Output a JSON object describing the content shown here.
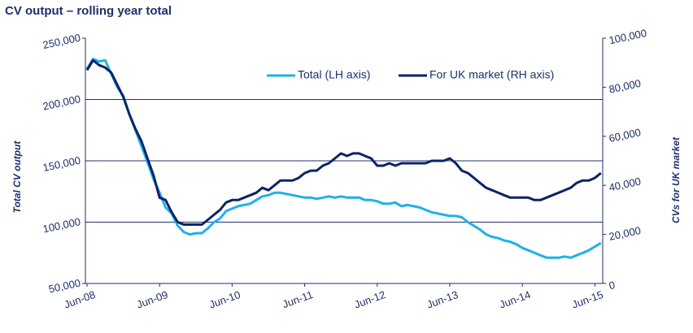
{
  "chart_data": {
    "type": "line",
    "title": "CV output – rolling year total",
    "ylabel": "Total CV output",
    "y2label": "CVs for UK market",
    "categories": [
      "Jun-08",
      null,
      null,
      null,
      null,
      null,
      null,
      null,
      null,
      null,
      null,
      null,
      "Jun-09",
      null,
      null,
      null,
      null,
      null,
      null,
      null,
      null,
      null,
      null,
      null,
      "Jun-10",
      null,
      null,
      null,
      null,
      null,
      null,
      null,
      null,
      null,
      null,
      null,
      "Jun-11",
      null,
      null,
      null,
      null,
      null,
      null,
      null,
      null,
      null,
      null,
      null,
      "Jun-12",
      null,
      null,
      null,
      null,
      null,
      null,
      null,
      null,
      null,
      null,
      null,
      "Jun-13",
      null,
      null,
      null,
      null,
      null,
      null,
      null,
      null,
      null,
      null,
      null,
      "Jun-14",
      null,
      null,
      null,
      null,
      null,
      null,
      null,
      null,
      null,
      null,
      null,
      "Jun-15",
      null
    ],
    "series": [
      {
        "name": "Total (LH axis)",
        "color": "#1fb1e6",
        "values": [
          225000,
          233000,
          231000,
          232000,
          221000,
          210000,
          203000,
          188000,
          175000,
          162000,
          149000,
          135000,
          124000,
          112000,
          107000,
          97000,
          92000,
          90000,
          91000,
          91000,
          95000,
          100000,
          103000,
          109000,
          111000,
          113000,
          114000,
          115000,
          118000,
          121000,
          122000,
          124000,
          124000,
          123000,
          122000,
          121000,
          120000,
          120000,
          119000,
          120000,
          121000,
          120000,
          121000,
          120000,
          120000,
          120000,
          118000,
          118000,
          117000,
          115000,
          115000,
          116000,
          113000,
          114000,
          113000,
          112000,
          110000,
          108000,
          107000,
          106000,
          105000,
          105000,
          104000,
          100000,
          97000,
          94000,
          90000,
          88000,
          87000,
          85000,
          84000,
          82000,
          79000,
          77000,
          75000,
          73000,
          71000,
          71000,
          71000,
          72000,
          71000,
          73000,
          75000,
          77000,
          80000,
          83000
        ]
      },
      {
        "name": "For UK market (RH axis)",
        "color": "#0b2466",
        "axis": "y2",
        "values": [
          87000,
          91000,
          89000,
          88000,
          86000,
          81000,
          76000,
          69000,
          63000,
          58000,
          51000,
          44000,
          35000,
          34000,
          29000,
          25000,
          24000,
          24000,
          24000,
          24000,
          26000,
          28000,
          30000,
          33000,
          34000,
          34000,
          35000,
          36000,
          37000,
          39000,
          38000,
          40000,
          42000,
          42000,
          42000,
          43000,
          45000,
          46000,
          46000,
          48000,
          49000,
          51000,
          53000,
          52000,
          53000,
          53000,
          52000,
          51000,
          48000,
          48000,
          49000,
          48000,
          49000,
          49000,
          49000,
          49000,
          49000,
          50000,
          50000,
          50000,
          51000,
          49000,
          46000,
          45000,
          43000,
          41000,
          39000,
          38000,
          37000,
          36000,
          35000,
          35000,
          35000,
          35000,
          34000,
          34000,
          35000,
          36000,
          37000,
          38000,
          39000,
          41000,
          42000,
          42000,
          43000,
          45000
        ]
      }
    ],
    "ylim": [
      50000,
      250000
    ],
    "yticks": [
      {
        "value": 50000,
        "label": "50,000"
      },
      {
        "value": 100000,
        "label": "100,000"
      },
      {
        "value": 150000,
        "label": "150,000"
      },
      {
        "value": 200000,
        "label": "200,000"
      },
      {
        "value": 250000,
        "label": "250,000"
      }
    ],
    "y2lim": [
      0,
      100000
    ],
    "y2ticks": [
      0,
      {
        "value": 20000,
        "label": "20,000"
      },
      {
        "value": 40000,
        "label": "40,000"
      },
      {
        "value": 60000,
        "label": "60,000"
      },
      {
        "value": 80000,
        "label": "80,000"
      },
      {
        "value": 100000,
        "label": "100,000"
      }
    ],
    "grid": true,
    "legend": "upper center"
  }
}
